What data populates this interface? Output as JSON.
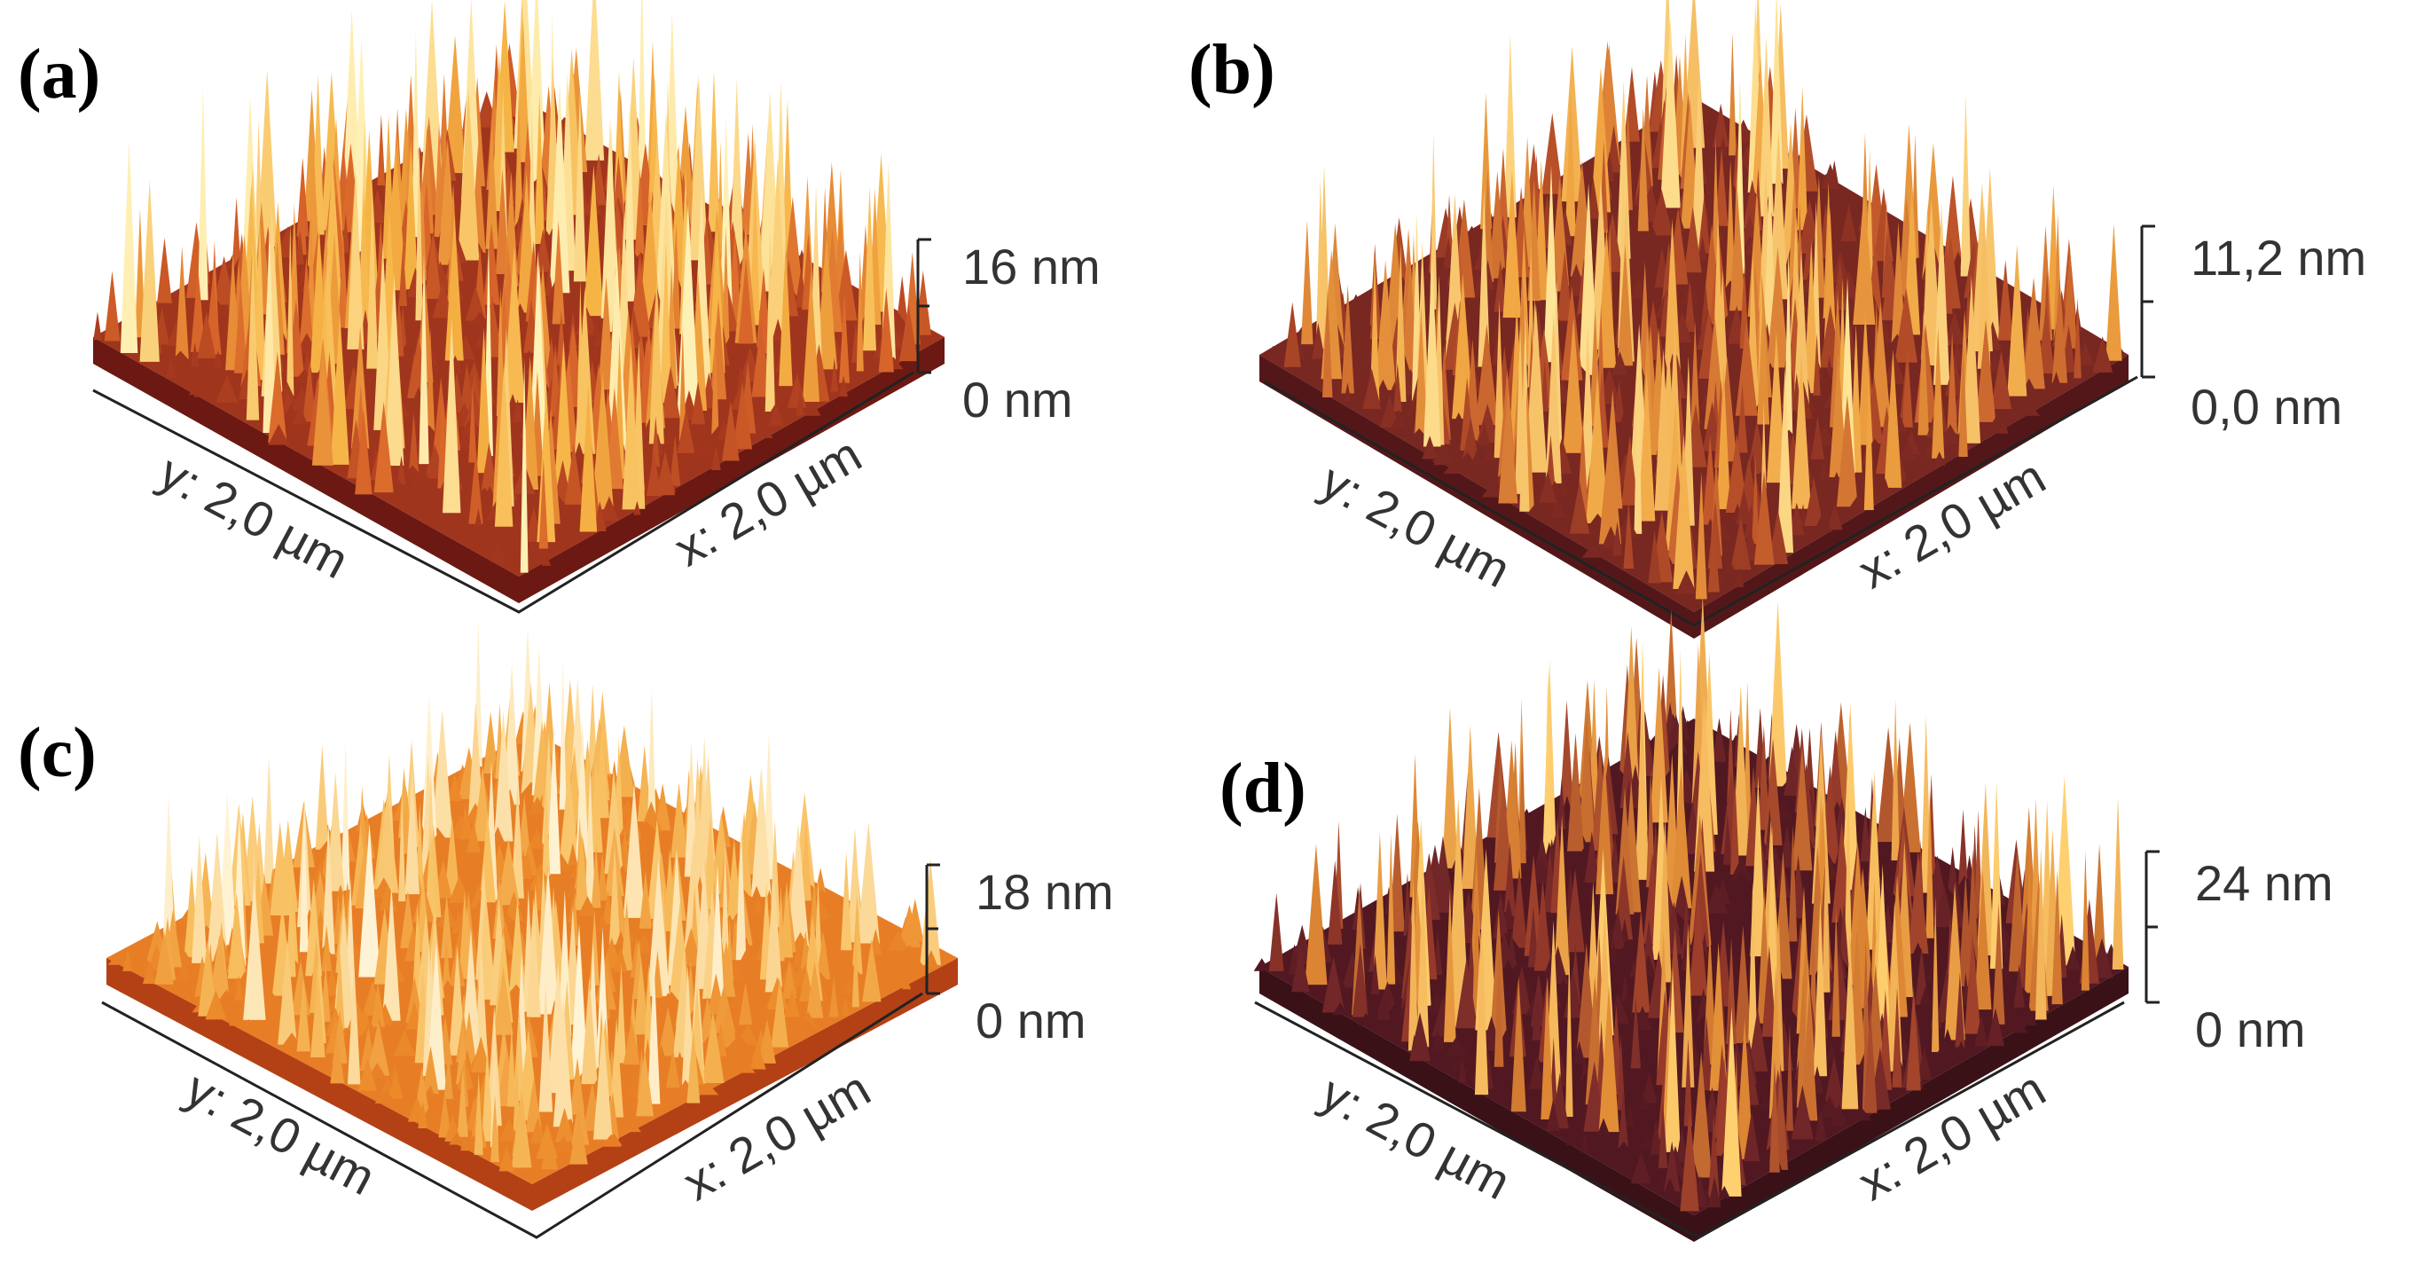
{
  "panels": [
    {
      "label": "(a)",
      "scale_max": "16 nm",
      "scale_min": "0 nm",
      "y_axis": "y: 2,0 µm",
      "x_axis": "x: 2,0 µm",
      "palette": [
        "#2a0a08",
        "#6e1a12",
        "#a5381e",
        "#d8652a",
        "#f6b344",
        "#fff2b8"
      ],
      "base": 0.38
    },
    {
      "label": "(b)",
      "scale_max": "11,2 nm",
      "scale_min": "0,0 nm",
      "y_axis": "y: 2,0 µm",
      "x_axis": "x: 2,0 µm",
      "palette": [
        "#2a0a0c",
        "#5e1a1c",
        "#8a3024",
        "#c0562a",
        "#f0a440",
        "#ffe79a"
      ],
      "base": 0.32
    },
    {
      "label": "(c)",
      "scale_max": "18 nm",
      "scale_min": "0 nm",
      "y_axis": "y: 2,0 µm",
      "x_axis": "x: 2,0 µm",
      "palette": [
        "#3a0c06",
        "#9e3212",
        "#d65a1a",
        "#ec8a2a",
        "#f8c060",
        "#fff4d6"
      ],
      "base": 0.55
    },
    {
      "label": "(d)",
      "scale_max": "24 nm",
      "scale_min": "0 nm",
      "y_axis": "y: 2,0 µm",
      "x_axis": "x: 2,0 µm",
      "palette": [
        "#240a0e",
        "#4e1620",
        "#702628",
        "#9a3c2a",
        "#e08a34",
        "#ffd070"
      ],
      "base": 0.22
    }
  ]
}
